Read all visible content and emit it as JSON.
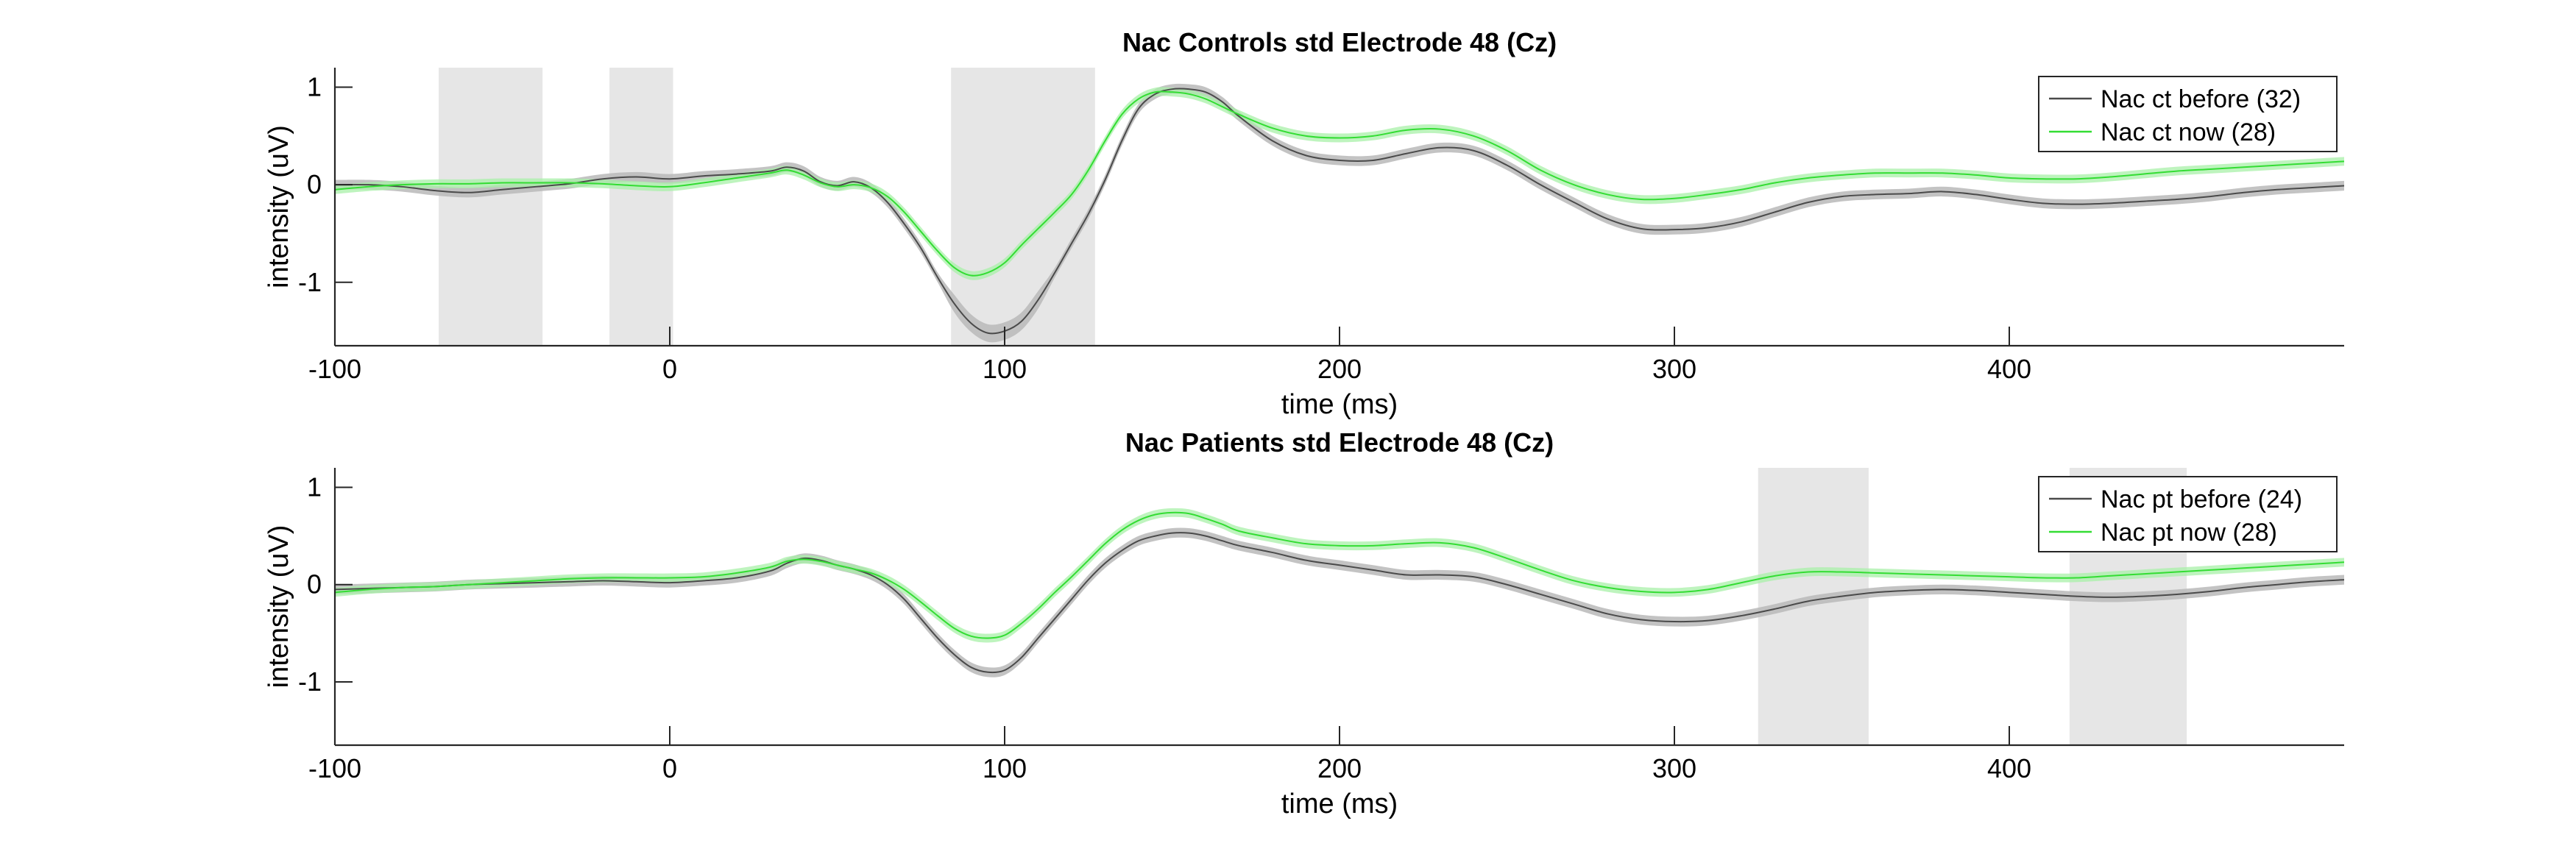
{
  "colors": {
    "before": "#4a4a4a",
    "before_band": "#b9b9b9",
    "now": "#33dd33",
    "now_band": "#a8f0a8",
    "sig_box": "#e6e6e6",
    "axis": "#262626"
  },
  "chart_data": [
    {
      "type": "line",
      "title": "Nac Controls std Electrode 48 (Cz)",
      "xlabel": "time (ms)",
      "ylabel": "intensity (uV)",
      "xlim": [
        -100,
        500
      ],
      "ylim": [
        -1.65,
        1.2
      ],
      "xticks": [
        "-100",
        "0",
        "100",
        "200",
        "300",
        "400"
      ],
      "yticks": [
        "-1",
        "0",
        "1"
      ],
      "grid": false,
      "legend_position": "top-right",
      "significance_windows": [
        [
          -69,
          -38
        ],
        [
          -18,
          1
        ],
        [
          84,
          127
        ]
      ],
      "x": [
        -100,
        -90,
        -80,
        -70,
        -60,
        -50,
        -40,
        -30,
        -20,
        -10,
        0,
        10,
        20,
        30,
        35,
        40,
        45,
        50,
        55,
        60,
        65,
        70,
        75,
        80,
        85,
        90,
        95,
        100,
        105,
        110,
        115,
        120,
        125,
        130,
        135,
        140,
        145,
        150,
        155,
        160,
        165,
        170,
        180,
        190,
        200,
        210,
        220,
        230,
        240,
        250,
        260,
        270,
        280,
        290,
        300,
        310,
        320,
        330,
        340,
        350,
        360,
        370,
        380,
        390,
        400,
        410,
        420,
        430,
        440,
        450,
        460,
        470,
        480,
        490,
        500
      ],
      "series": [
        {
          "name": "Nac ct before (32)",
          "values": [
            0.0,
            0.0,
            -0.02,
            -0.06,
            -0.08,
            -0.05,
            -0.02,
            0.01,
            0.06,
            0.08,
            0.06,
            0.09,
            0.11,
            0.14,
            0.18,
            0.14,
            0.03,
            -0.01,
            0.03,
            -0.03,
            -0.18,
            -0.4,
            -0.65,
            -0.95,
            -1.22,
            -1.42,
            -1.52,
            -1.5,
            -1.4,
            -1.18,
            -0.9,
            -0.6,
            -0.3,
            0.05,
            0.45,
            0.78,
            0.93,
            0.98,
            0.98,
            0.95,
            0.85,
            0.7,
            0.45,
            0.3,
            0.25,
            0.25,
            0.32,
            0.38,
            0.35,
            0.2,
            0.0,
            -0.18,
            -0.35,
            -0.45,
            -0.46,
            -0.44,
            -0.38,
            -0.28,
            -0.18,
            -0.12,
            -0.1,
            -0.09,
            -0.07,
            -0.1,
            -0.15,
            -0.19,
            -0.2,
            -0.19,
            -0.17,
            -0.15,
            -0.12,
            -0.08,
            -0.05,
            -0.03,
            -0.01
          ]
        },
        {
          "name": "Nac ct now (28)",
          "values": [
            -0.05,
            -0.02,
            0.0,
            0.01,
            0.01,
            0.02,
            0.02,
            0.02,
            0.01,
            -0.01,
            -0.02,
            0.02,
            0.07,
            0.12,
            0.15,
            0.1,
            0.02,
            -0.02,
            0.0,
            -0.03,
            -0.12,
            -0.28,
            -0.48,
            -0.68,
            -0.85,
            -0.93,
            -0.9,
            -0.8,
            -0.62,
            -0.45,
            -0.28,
            -0.1,
            0.15,
            0.45,
            0.72,
            0.88,
            0.95,
            0.95,
            0.93,
            0.88,
            0.8,
            0.72,
            0.58,
            0.5,
            0.48,
            0.5,
            0.56,
            0.57,
            0.5,
            0.35,
            0.15,
            0.0,
            -0.1,
            -0.15,
            -0.14,
            -0.1,
            -0.05,
            0.02,
            0.07,
            0.1,
            0.12,
            0.12,
            0.12,
            0.1,
            0.07,
            0.06,
            0.06,
            0.08,
            0.11,
            0.14,
            0.16,
            0.18,
            0.2,
            0.22,
            0.24
          ]
        }
      ]
    },
    {
      "type": "line",
      "title": "Nac Patients std Electrode 48 (Cz)",
      "xlabel": "time (ms)",
      "ylabel": "intensity (uV)",
      "xlim": [
        -100,
        500
      ],
      "ylim": [
        -1.65,
        1.2
      ],
      "xticks": [
        "-100",
        "0",
        "100",
        "200",
        "300",
        "400"
      ],
      "yticks": [
        "-1",
        "0",
        "1"
      ],
      "grid": false,
      "legend_position": "top-right",
      "significance_windows": [
        [
          325,
          358
        ],
        [
          418,
          453
        ]
      ],
      "x": [
        -100,
        -90,
        -80,
        -70,
        -60,
        -50,
        -40,
        -30,
        -20,
        -10,
        0,
        10,
        20,
        30,
        35,
        40,
        45,
        50,
        55,
        60,
        65,
        70,
        75,
        80,
        85,
        90,
        95,
        100,
        105,
        110,
        115,
        120,
        125,
        130,
        135,
        140,
        145,
        150,
        155,
        160,
        165,
        170,
        180,
        190,
        200,
        210,
        220,
        230,
        240,
        250,
        260,
        270,
        280,
        290,
        300,
        310,
        320,
        330,
        340,
        350,
        360,
        370,
        380,
        390,
        400,
        410,
        420,
        430,
        440,
        450,
        460,
        470,
        480,
        490,
        500
      ],
      "series": [
        {
          "name": "Nac pt before (24)",
          "values": [
            -0.05,
            -0.04,
            -0.03,
            -0.02,
            0.0,
            0.01,
            0.02,
            0.03,
            0.04,
            0.03,
            0.02,
            0.04,
            0.07,
            0.14,
            0.22,
            0.27,
            0.25,
            0.2,
            0.16,
            0.1,
            0.0,
            -0.15,
            -0.35,
            -0.55,
            -0.72,
            -0.85,
            -0.9,
            -0.88,
            -0.75,
            -0.55,
            -0.35,
            -0.15,
            0.05,
            0.22,
            0.35,
            0.45,
            0.5,
            0.53,
            0.53,
            0.5,
            0.45,
            0.4,
            0.33,
            0.25,
            0.2,
            0.15,
            0.1,
            0.1,
            0.08,
            0.0,
            -0.1,
            -0.2,
            -0.3,
            -0.36,
            -0.38,
            -0.37,
            -0.32,
            -0.25,
            -0.17,
            -0.12,
            -0.08,
            -0.06,
            -0.05,
            -0.06,
            -0.08,
            -0.1,
            -0.12,
            -0.13,
            -0.12,
            -0.1,
            -0.07,
            -0.03,
            0.0,
            0.03,
            0.05
          ]
        },
        {
          "name": "Nac pt now (28)",
          "values": [
            -0.08,
            -0.05,
            -0.03,
            -0.02,
            0.0,
            0.02,
            0.04,
            0.06,
            0.07,
            0.07,
            0.07,
            0.08,
            0.12,
            0.18,
            0.24,
            0.26,
            0.24,
            0.2,
            0.16,
            0.12,
            0.05,
            -0.05,
            -0.18,
            -0.32,
            -0.45,
            -0.53,
            -0.55,
            -0.52,
            -0.4,
            -0.25,
            -0.08,
            0.08,
            0.25,
            0.42,
            0.56,
            0.66,
            0.72,
            0.74,
            0.73,
            0.68,
            0.62,
            0.55,
            0.48,
            0.42,
            0.4,
            0.4,
            0.42,
            0.43,
            0.38,
            0.27,
            0.15,
            0.04,
            -0.03,
            -0.07,
            -0.08,
            -0.05,
            0.02,
            0.09,
            0.13,
            0.13,
            0.12,
            0.11,
            0.1,
            0.09,
            0.08,
            0.07,
            0.07,
            0.09,
            0.11,
            0.13,
            0.15,
            0.17,
            0.19,
            0.21,
            0.23
          ]
        }
      ]
    }
  ]
}
